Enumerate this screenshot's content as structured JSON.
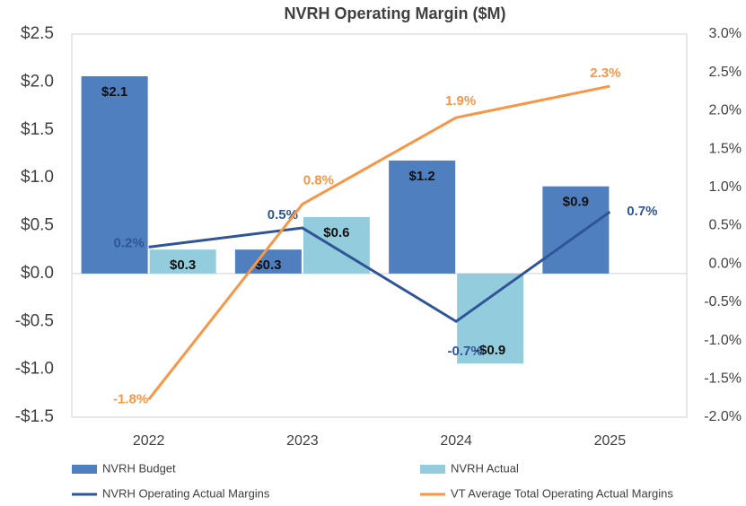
{
  "chart_data": {
    "type": "bar_line",
    "title": "NVRH Operating Margin ($M)",
    "categories": [
      "2022",
      "2023",
      "2024",
      "2025"
    ],
    "series": [
      {
        "name": "NVRH Budget",
        "type": "bar",
        "color": "#4f7fbf",
        "values": [
          2.06,
          0.25,
          1.18,
          0.91
        ],
        "value_labels": [
          "$2.1",
          "$0.3",
          "$1.2",
          "$0.9"
        ]
      },
      {
        "name": "NVRH Actual",
        "type": "bar",
        "color": "#93cddd",
        "values": [
          0.25,
          0.59,
          -0.94,
          null
        ],
        "value_labels": [
          "$0.3",
          "$0.6",
          "-$0.9",
          null
        ]
      },
      {
        "name": "NVRH Operating Actual Margins",
        "type": "line",
        "axis": "y2",
        "color": "#2f5597",
        "values": [
          0.22,
          0.47,
          -0.75,
          0.68
        ],
        "value_labels": [
          "0.2%",
          "0.5%",
          "-0.7%",
          "0.7%"
        ]
      },
      {
        "name": "VT Average Total Operating Actual Margins",
        "type": "line",
        "axis": "y2",
        "color": "#f79646",
        "values": [
          -1.77,
          0.78,
          1.91,
          2.32
        ],
        "value_labels": [
          "-1.8%",
          "0.8%",
          "1.9%",
          "2.3%"
        ]
      }
    ],
    "ylim": [
      -1.5,
      2.5
    ],
    "yticks": [
      {
        "value": -1.5,
        "label": "-$1.5"
      },
      {
        "value": -1.0,
        "label": "-$1.0"
      },
      {
        "value": -0.5,
        "label": "-$0.5"
      },
      {
        "value": 0.0,
        "label": "$0.0"
      },
      {
        "value": 0.5,
        "label": "$0.5"
      },
      {
        "value": 1.0,
        "label": "$1.0"
      },
      {
        "value": 1.5,
        "label": "$1.5"
      },
      {
        "value": 2.0,
        "label": "$2.0"
      },
      {
        "value": 2.5,
        "label": "$2.5"
      }
    ],
    "y2lim": [
      -2.0,
      3.0
    ],
    "y2ticks": [
      {
        "value": -2.0,
        "label": "-2.0%"
      },
      {
        "value": -1.5,
        "label": "-1.5%"
      },
      {
        "value": -1.0,
        "label": "-1.0%"
      },
      {
        "value": -0.5,
        "label": "-0.5%"
      },
      {
        "value": 0.0,
        "label": "0.0%"
      },
      {
        "value": 0.5,
        "label": "0.5%"
      },
      {
        "value": 1.0,
        "label": "1.0%"
      },
      {
        "value": 1.5,
        "label": "1.5%"
      },
      {
        "value": 2.0,
        "label": "2.0%"
      },
      {
        "value": 2.5,
        "label": "2.5%"
      },
      {
        "value": 3.0,
        "label": "3.0%"
      }
    ],
    "grid": false,
    "legend": "bottom"
  }
}
